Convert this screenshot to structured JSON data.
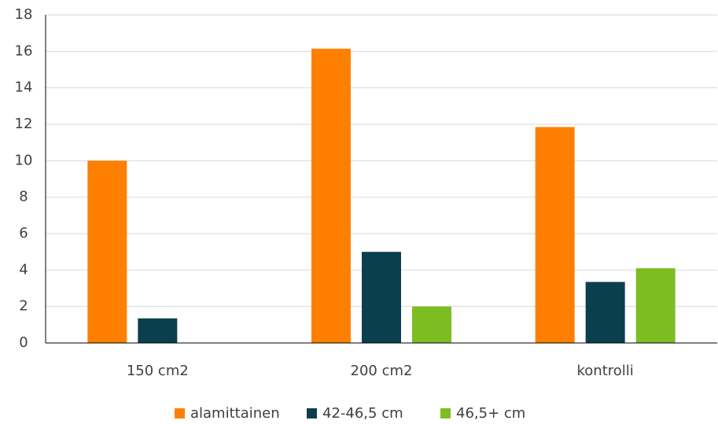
{
  "chart_data": {
    "type": "bar",
    "categories": [
      "150 cm2",
      "200 cm2",
      "kontrolli"
    ],
    "series": [
      {
        "name": "alamittainen",
        "color": "#ff8000",
        "values": [
          10,
          16.15,
          11.85
        ]
      },
      {
        "name": "42-46,5 cm",
        "color": "#0c3f4e",
        "values": [
          1.35,
          5,
          3.35
        ]
      },
      {
        "name": "46,5+ cm",
        "color": "#7dbd22",
        "values": [
          0,
          2,
          4.1
        ]
      }
    ],
    "ylim": [
      0,
      18
    ],
    "yticks": [
      0,
      2,
      4,
      6,
      8,
      10,
      12,
      14,
      16,
      18
    ],
    "grid": true,
    "legend": "bottom"
  }
}
